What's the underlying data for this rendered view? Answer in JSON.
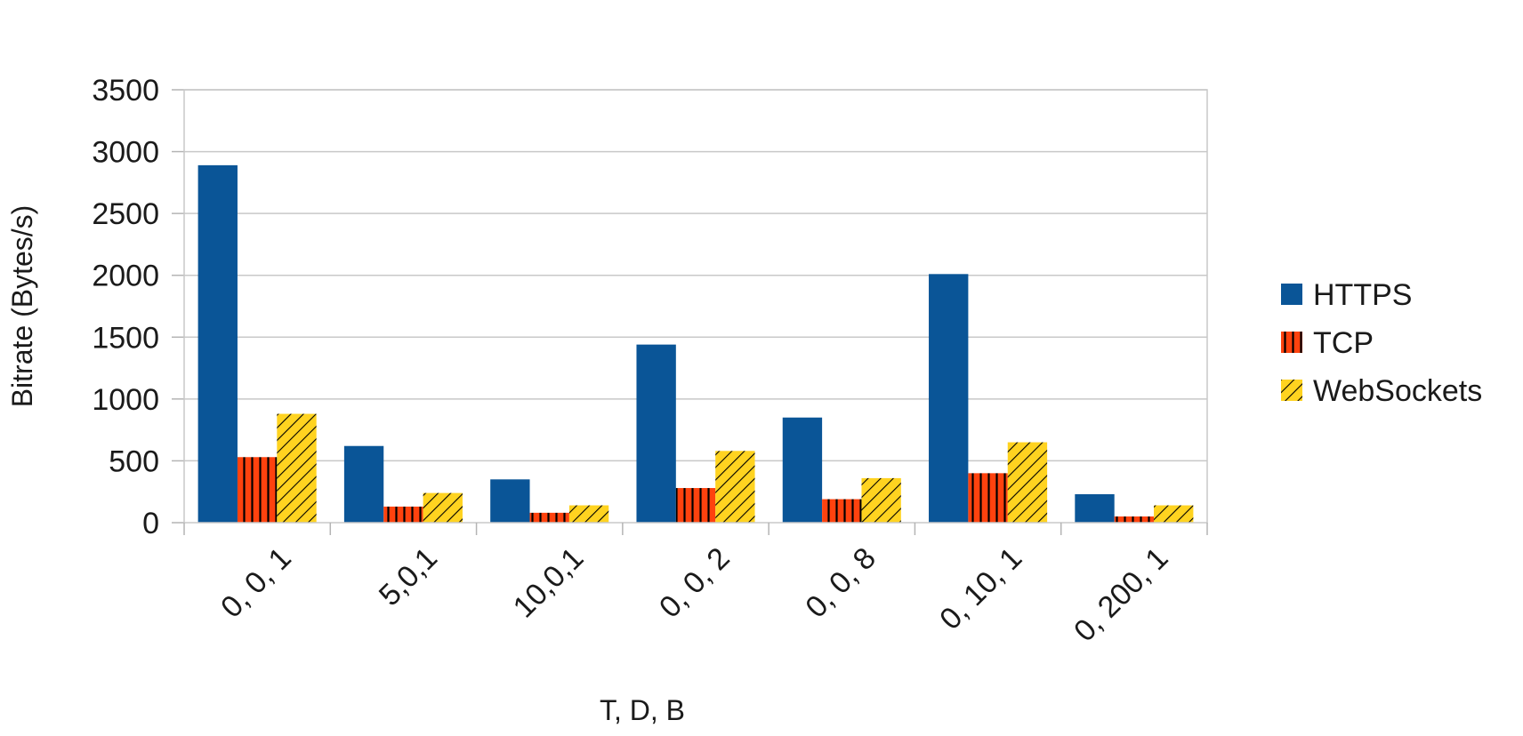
{
  "chart_data": {
    "type": "bar",
    "title": "",
    "xlabel": "T, D, B",
    "ylabel": "Bitrate (Bytes/s)",
    "ylim": [
      0,
      3500
    ],
    "yticks": [
      0,
      500,
      1000,
      1500,
      2000,
      2500,
      3000,
      3500
    ],
    "categories": [
      "0, 0, 1",
      "5,0,1",
      "10,0,1",
      "0, 0, 2",
      "0, 0, 8",
      "0, 10, 1",
      "0, 200, 1"
    ],
    "series": [
      {
        "name": "HTTPS",
        "color": "#0a5597",
        "pattern": "solid",
        "values": [
          2890,
          620,
          350,
          1440,
          850,
          2010,
          230
        ]
      },
      {
        "name": "TCP",
        "color": "#ff420e",
        "pattern": "vertical-lines",
        "values": [
          530,
          130,
          80,
          280,
          190,
          400,
          50
        ]
      },
      {
        "name": "WebSockets",
        "color": "#ffd320",
        "pattern": "diagonal-lines",
        "values": [
          880,
          240,
          140,
          580,
          360,
          650,
          140
        ]
      }
    ],
    "grid": true,
    "legend": "right"
  }
}
